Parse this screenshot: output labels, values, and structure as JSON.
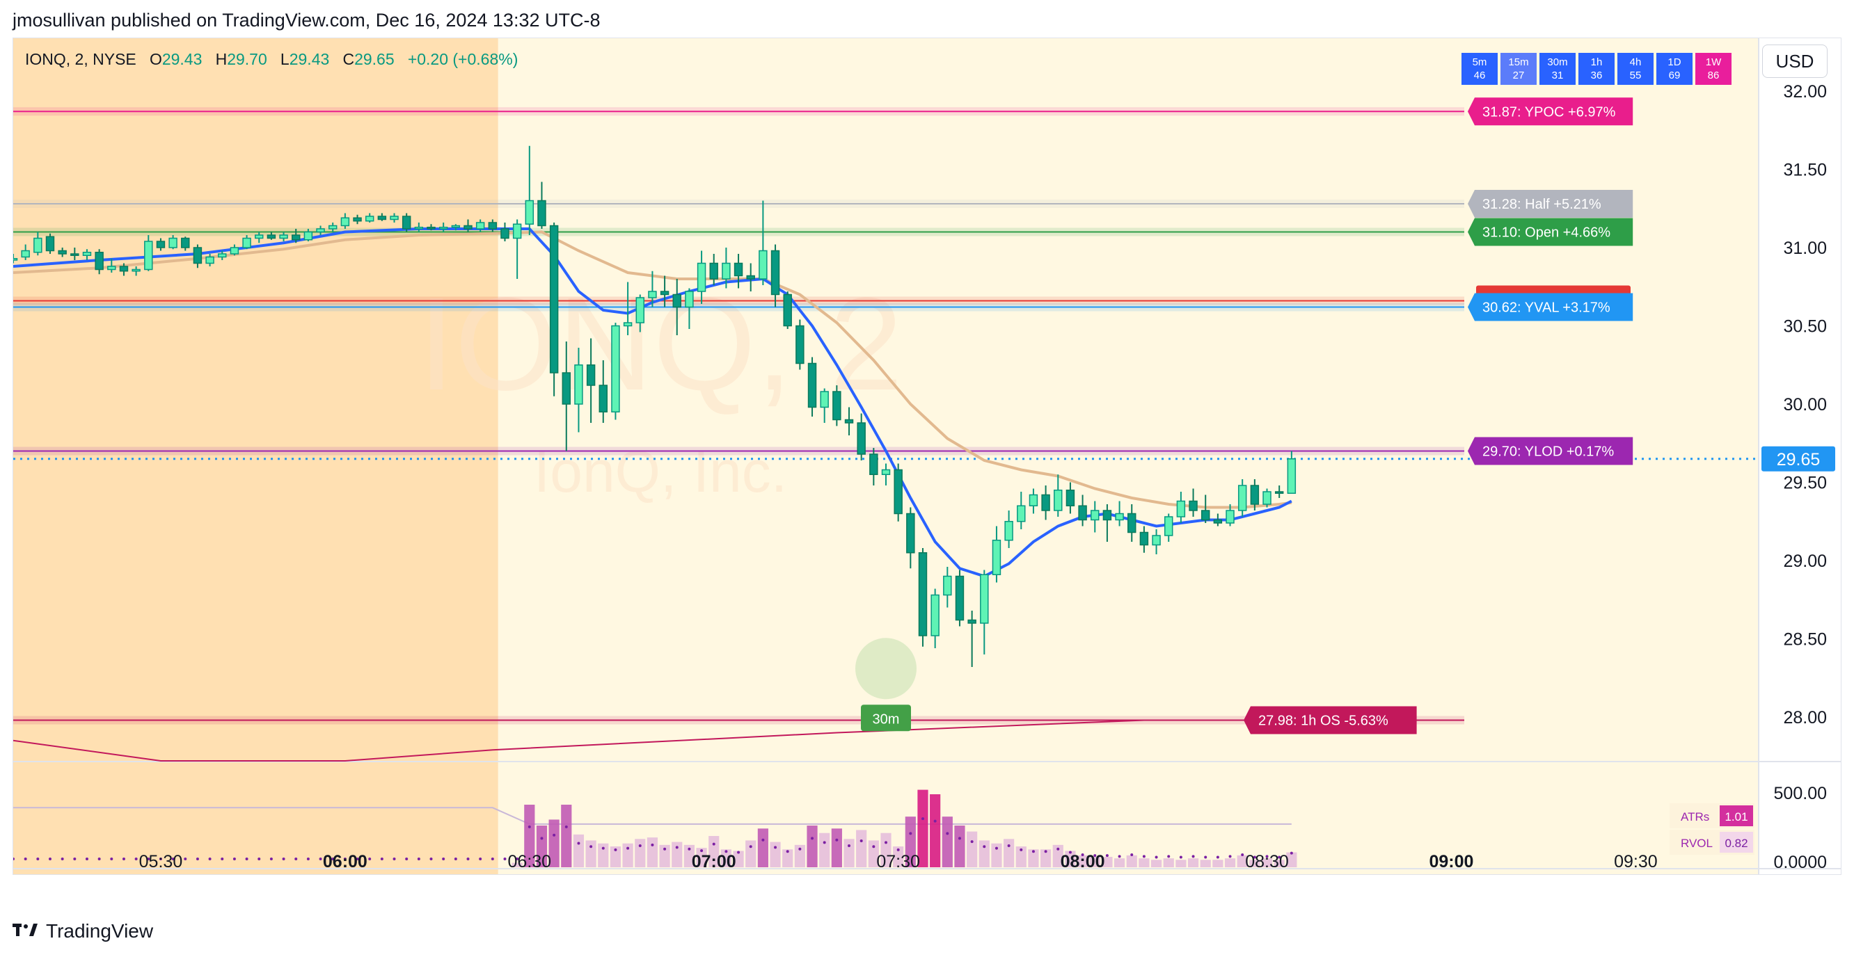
{
  "header": {
    "publisher_line": "jmosullivan published on TradingView.com, Dec 16, 2024 13:32 UTC-8"
  },
  "footer": {
    "brand": "TradingView",
    "logo_glyph": "17"
  },
  "legend": {
    "symbol": "IONQ, 2, NYSE",
    "open_label": "O",
    "open": "29.43",
    "high_label": "H",
    "high": "29.70",
    "low_label": "L",
    "low": "29.43",
    "close_label": "C",
    "close": "29.65",
    "change": "+0.20 (+0.68%)"
  },
  "watermark": {
    "symbol": "IONQ, 2",
    "company": "IonQ, Inc."
  },
  "currency_button": "USD",
  "timeframes": [
    {
      "label": "5m",
      "value": "46",
      "color": "#2962ff"
    },
    {
      "label": "15m",
      "value": "27",
      "color": "#5b7cfa"
    },
    {
      "label": "30m",
      "value": "31",
      "color": "#2962ff"
    },
    {
      "label": "1h",
      "value": "36",
      "color": "#2962ff"
    },
    {
      "label": "4h",
      "value": "55",
      "color": "#2962ff"
    },
    {
      "label": "1D",
      "value": "69",
      "color": "#2962ff"
    },
    {
      "label": "1W",
      "value": "86",
      "color": "#e91e9c"
    }
  ],
  "chart_data": {
    "type": "candlestick",
    "symbol": "IONQ",
    "interval": "2",
    "exchange": "NYSE",
    "x_ticks": [
      {
        "label": "05:30",
        "bold": false,
        "min": 330
      },
      {
        "label": "06:00",
        "bold": true,
        "min": 360
      },
      {
        "label": "06:30",
        "bold": false,
        "min": 390
      },
      {
        "label": "07:00",
        "bold": true,
        "min": 420
      },
      {
        "label": "07:30",
        "bold": false,
        "min": 450
      },
      {
        "label": "08:00",
        "bold": true,
        "min": 480
      },
      {
        "label": "08:30",
        "bold": false,
        "min": 510
      },
      {
        "label": "09:00",
        "bold": true,
        "min": 540
      },
      {
        "label": "09:30",
        "bold": false,
        "min": 570
      }
    ],
    "y_ticks": [
      "32.00",
      "31.50",
      "31.00",
      "30.50",
      "30.00",
      "29.50",
      "29.00",
      "28.50",
      "28.00"
    ],
    "ylim": [
      27.7,
      32.3
    ],
    "xlim_minutes": [
      306,
      590
    ],
    "premarket_end_minute": 384,
    "current_price": "29.65",
    "levels": [
      {
        "price": 31.87,
        "label": "31.87: YPOC +6.97%",
        "color": "#e91e8c"
      },
      {
        "price": 31.28,
        "label": "31.28: Half +5.21%",
        "color": "#b2b5be"
      },
      {
        "price": 31.1,
        "label": "31.10: Open +4.66%",
        "color": "#2e9e48"
      },
      {
        "price": 30.66,
        "label": "",
        "color": "#e53935"
      },
      {
        "price": 30.62,
        "label": "30.62: YVAL +3.17%",
        "color": "#2196f3"
      },
      {
        "price": 29.7,
        "label": "29.70: YLOD +0.17%",
        "color": "#9c27b0"
      },
      {
        "price": 27.98,
        "label": "27.98: 1h OS -5.63%",
        "color": "#c2185b"
      }
    ],
    "signal_badge": {
      "label": "30m",
      "minute": 448,
      "price": 28.31
    },
    "candles": [
      [
        306,
        30.92,
        30.96,
        30.9,
        30.93
      ],
      [
        308,
        30.94,
        31.02,
        30.92,
        30.98
      ],
      [
        310,
        30.97,
        31.1,
        30.95,
        31.06
      ],
      [
        312,
        31.07,
        31.09,
        30.96,
        30.98
      ],
      [
        314,
        30.98,
        31.0,
        30.94,
        30.96
      ],
      [
        316,
        30.96,
        31.0,
        30.92,
        30.95
      ],
      [
        318,
        30.95,
        30.99,
        30.92,
        30.97
      ],
      [
        320,
        30.97,
        30.99,
        30.83,
        30.86
      ],
      [
        322,
        30.86,
        30.93,
        30.84,
        30.88
      ],
      [
        324,
        30.88,
        30.9,
        30.82,
        30.85
      ],
      [
        326,
        30.85,
        30.88,
        30.82,
        30.86
      ],
      [
        328,
        30.86,
        31.08,
        30.85,
        31.04
      ],
      [
        330,
        31.04,
        31.06,
        30.98,
        31.0
      ],
      [
        332,
        31.0,
        31.08,
        30.99,
        31.06
      ],
      [
        334,
        31.06,
        31.07,
        30.98,
        31.0
      ],
      [
        336,
        31.0,
        31.02,
        30.87,
        30.9
      ],
      [
        338,
        30.9,
        30.96,
        30.88,
        30.94
      ],
      [
        340,
        30.94,
        30.98,
        30.92,
        30.96
      ],
      [
        342,
        30.96,
        31.02,
        30.95,
        31.0
      ],
      [
        344,
        31.0,
        31.08,
        30.99,
        31.06
      ],
      [
        346,
        31.06,
        31.1,
        31.03,
        31.08
      ],
      [
        348,
        31.08,
        31.1,
        31.05,
        31.06
      ],
      [
        350,
        31.06,
        31.1,
        31.04,
        31.08
      ],
      [
        352,
        31.08,
        31.12,
        31.03,
        31.05
      ],
      [
        354,
        31.05,
        31.12,
        31.04,
        31.1
      ],
      [
        356,
        31.1,
        31.14,
        31.08,
        31.12
      ],
      [
        358,
        31.12,
        31.16,
        31.1,
        31.14
      ],
      [
        360,
        31.14,
        31.22,
        31.12,
        31.19
      ],
      [
        362,
        31.19,
        31.21,
        31.15,
        31.17
      ],
      [
        364,
        31.17,
        31.22,
        31.16,
        31.2
      ],
      [
        366,
        31.2,
        31.22,
        31.17,
        31.18
      ],
      [
        368,
        31.18,
        31.22,
        31.16,
        31.2
      ],
      [
        370,
        31.2,
        31.22,
        31.1,
        31.12
      ],
      [
        372,
        31.12,
        31.16,
        31.1,
        31.13
      ],
      [
        374,
        31.13,
        31.15,
        31.11,
        31.12
      ],
      [
        376,
        31.12,
        31.16,
        31.1,
        31.13
      ],
      [
        378,
        31.13,
        31.15,
        31.11,
        31.14
      ],
      [
        380,
        31.14,
        31.18,
        31.1,
        31.12
      ],
      [
        382,
        31.12,
        31.18,
        31.1,
        31.16
      ],
      [
        384,
        31.16,
        31.18,
        31.1,
        31.12
      ],
      [
        386,
        31.12,
        31.16,
        31.04,
        31.06
      ],
      [
        388,
        31.06,
        31.18,
        30.8,
        31.15
      ],
      [
        390,
        31.15,
        31.65,
        31.08,
        31.3
      ],
      [
        392,
        31.3,
        31.42,
        31.12,
        31.14
      ],
      [
        394,
        31.14,
        31.16,
        30.05,
        30.2
      ],
      [
        396,
        30.2,
        30.4,
        29.7,
        30.0
      ],
      [
        398,
        30.0,
        30.36,
        29.82,
        30.25
      ],
      [
        400,
        30.25,
        30.42,
        29.88,
        30.12
      ],
      [
        402,
        30.12,
        30.28,
        29.88,
        29.95
      ],
      [
        404,
        29.95,
        30.52,
        29.9,
        30.5
      ],
      [
        406,
        30.5,
        30.78,
        30.44,
        30.52
      ],
      [
        408,
        30.52,
        30.7,
        30.46,
        30.68
      ],
      [
        410,
        30.68,
        30.85,
        30.62,
        30.72
      ],
      [
        412,
        30.72,
        30.82,
        30.62,
        30.7
      ],
      [
        414,
        30.7,
        30.8,
        30.44,
        30.62
      ],
      [
        416,
        30.62,
        30.74,
        30.48,
        30.72
      ],
      [
        418,
        30.72,
        30.98,
        30.64,
        30.9
      ],
      [
        420,
        30.9,
        30.96,
        30.76,
        30.8
      ],
      [
        422,
        30.8,
        31.0,
        30.74,
        30.9
      ],
      [
        424,
        30.9,
        30.96,
        30.74,
        30.82
      ],
      [
        426,
        30.82,
        30.9,
        30.72,
        30.8
      ],
      [
        428,
        30.8,
        31.3,
        30.76,
        30.98
      ],
      [
        430,
        30.98,
        31.02,
        30.62,
        30.7
      ],
      [
        432,
        30.7,
        30.72,
        30.48,
        30.5
      ],
      [
        434,
        30.5,
        30.54,
        30.22,
        30.26
      ],
      [
        436,
        30.26,
        30.3,
        29.92,
        29.98
      ],
      [
        438,
        29.98,
        30.1,
        29.88,
        30.08
      ],
      [
        440,
        30.08,
        30.12,
        29.86,
        29.9
      ],
      [
        442,
        29.9,
        29.98,
        29.8,
        29.88
      ],
      [
        444,
        29.88,
        29.94,
        29.64,
        29.68
      ],
      [
        446,
        29.68,
        29.72,
        29.48,
        29.55
      ],
      [
        448,
        29.55,
        29.62,
        29.48,
        29.58
      ],
      [
        450,
        29.58,
        29.62,
        29.25,
        29.3
      ],
      [
        452,
        29.3,
        29.34,
        28.95,
        29.05
      ],
      [
        454,
        29.05,
        29.08,
        28.45,
        28.52
      ],
      [
        456,
        28.52,
        28.82,
        28.44,
        28.78
      ],
      [
        458,
        28.78,
        28.96,
        28.7,
        28.9
      ],
      [
        460,
        28.9,
        28.94,
        28.58,
        28.62
      ],
      [
        462,
        28.62,
        28.68,
        28.32,
        28.6
      ],
      [
        464,
        28.6,
        28.94,
        28.4,
        28.91
      ],
      [
        466,
        28.91,
        29.22,
        28.86,
        29.13
      ],
      [
        468,
        29.13,
        29.32,
        29.08,
        29.25
      ],
      [
        470,
        29.25,
        29.44,
        29.2,
        29.35
      ],
      [
        472,
        29.35,
        29.46,
        29.3,
        29.42
      ],
      [
        474,
        29.42,
        29.48,
        29.26,
        29.32
      ],
      [
        476,
        29.32,
        29.55,
        29.28,
        29.45
      ],
      [
        478,
        29.45,
        29.5,
        29.3,
        29.35
      ],
      [
        480,
        29.35,
        29.42,
        29.22,
        29.26
      ],
      [
        482,
        29.26,
        29.38,
        29.18,
        29.32
      ],
      [
        484,
        29.32,
        29.36,
        29.12,
        29.26
      ],
      [
        486,
        29.26,
        29.38,
        29.22,
        29.3
      ],
      [
        488,
        29.3,
        29.36,
        29.12,
        29.18
      ],
      [
        490,
        29.18,
        29.22,
        29.05,
        29.1
      ],
      [
        492,
        29.1,
        29.2,
        29.04,
        29.16
      ],
      [
        494,
        29.16,
        29.3,
        29.12,
        29.28
      ],
      [
        496,
        29.28,
        29.44,
        29.24,
        29.38
      ],
      [
        498,
        29.38,
        29.46,
        29.28,
        29.32
      ],
      [
        500,
        29.32,
        29.42,
        29.24,
        29.26
      ],
      [
        502,
        29.26,
        29.3,
        29.22,
        29.24
      ],
      [
        504,
        29.24,
        29.36,
        29.22,
        29.32
      ],
      [
        506,
        29.32,
        29.52,
        29.28,
        29.48
      ],
      [
        508,
        29.48,
        29.52,
        29.32,
        29.36
      ],
      [
        510,
        29.36,
        29.46,
        29.34,
        29.44
      ],
      [
        512,
        29.44,
        29.48,
        29.4,
        29.43
      ],
      [
        514,
        29.43,
        29.7,
        29.43,
        29.65
      ]
    ],
    "ema_fast": [
      [
        306,
        30.88
      ],
      [
        320,
        30.92
      ],
      [
        336,
        30.96
      ],
      [
        350,
        31.03
      ],
      [
        360,
        31.1
      ],
      [
        372,
        31.12
      ],
      [
        384,
        31.12
      ],
      [
        390,
        31.12
      ],
      [
        394,
        30.95
      ],
      [
        398,
        30.72
      ],
      [
        402,
        30.6
      ],
      [
        406,
        30.58
      ],
      [
        410,
        30.65
      ],
      [
        416,
        30.72
      ],
      [
        422,
        30.78
      ],
      [
        428,
        30.8
      ],
      [
        432,
        30.7
      ],
      [
        436,
        30.5
      ],
      [
        440,
        30.25
      ],
      [
        444,
        29.98
      ],
      [
        448,
        29.7
      ],
      [
        452,
        29.4
      ],
      [
        456,
        29.12
      ],
      [
        460,
        28.95
      ],
      [
        464,
        28.9
      ],
      [
        468,
        28.98
      ],
      [
        472,
        29.12
      ],
      [
        476,
        29.22
      ],
      [
        480,
        29.28
      ],
      [
        484,
        29.3
      ],
      [
        488,
        29.26
      ],
      [
        492,
        29.22
      ],
      [
        496,
        29.24
      ],
      [
        500,
        29.26
      ],
      [
        504,
        29.26
      ],
      [
        508,
        29.3
      ],
      [
        512,
        29.34
      ],
      [
        514,
        29.38
      ]
    ],
    "ema_slow": [
      [
        306,
        30.84
      ],
      [
        320,
        30.87
      ],
      [
        336,
        30.93
      ],
      [
        350,
        30.99
      ],
      [
        360,
        31.05
      ],
      [
        372,
        31.08
      ],
      [
        384,
        31.09
      ],
      [
        392,
        31.1
      ],
      [
        398,
        30.98
      ],
      [
        406,
        30.84
      ],
      [
        414,
        30.8
      ],
      [
        422,
        30.8
      ],
      [
        428,
        30.8
      ],
      [
        434,
        30.7
      ],
      [
        440,
        30.52
      ],
      [
        446,
        30.28
      ],
      [
        452,
        30.0
      ],
      [
        458,
        29.78
      ],
      [
        464,
        29.64
      ],
      [
        470,
        29.58
      ],
      [
        476,
        29.54
      ],
      [
        482,
        29.46
      ],
      [
        488,
        29.4
      ],
      [
        494,
        29.36
      ],
      [
        500,
        29.34
      ],
      [
        506,
        29.34
      ],
      [
        512,
        29.36
      ],
      [
        514,
        29.37
      ]
    ],
    "overshoot_line": [
      [
        306,
        27.85
      ],
      [
        330,
        27.72
      ],
      [
        360,
        27.72
      ],
      [
        384,
        27.79
      ],
      [
        440,
        27.9
      ],
      [
        490,
        27.98
      ],
      [
        512,
        27.98
      ]
    ],
    "volume_panel": {
      "y_ticks": [
        "500.00",
        "0.0000"
      ],
      "ymax": 700,
      "stats": [
        {
          "label": "ATRs",
          "value": "1.01",
          "color": "#d32f9e"
        },
        {
          "label": "RVOL",
          "value": "0.82",
          "color": "#f3d7ea"
        }
      ],
      "avg_line": [
        [
          306,
          400
        ],
        [
          384,
          400
        ],
        [
          390,
          290
        ],
        [
          514,
          290
        ]
      ],
      "volumes": [
        [
          388,
          30
        ],
        [
          390,
          420
        ],
        [
          392,
          280
        ],
        [
          394,
          320
        ],
        [
          396,
          420
        ],
        [
          398,
          220
        ],
        [
          400,
          180
        ],
        [
          402,
          160
        ],
        [
          404,
          140
        ],
        [
          406,
          160
        ],
        [
          408,
          190
        ],
        [
          410,
          200
        ],
        [
          412,
          150
        ],
        [
          414,
          170
        ],
        [
          416,
          150
        ],
        [
          418,
          130
        ],
        [
          420,
          210
        ],
        [
          422,
          120
        ],
        [
          424,
          110
        ],
        [
          426,
          180
        ],
        [
          428,
          260
        ],
        [
          430,
          170
        ],
        [
          432,
          120
        ],
        [
          434,
          150
        ],
        [
          436,
          280
        ],
        [
          438,
          230
        ],
        [
          440,
          260
        ],
        [
          442,
          190
        ],
        [
          444,
          250
        ],
        [
          446,
          180
        ],
        [
          448,
          230
        ],
        [
          450,
          140
        ],
        [
          452,
          340
        ],
        [
          454,
          520
        ],
        [
          456,
          490
        ],
        [
          458,
          340
        ],
        [
          460,
          280
        ],
        [
          462,
          240
        ],
        [
          464,
          180
        ],
        [
          466,
          160
        ],
        [
          468,
          190
        ],
        [
          470,
          140
        ],
        [
          472,
          120
        ],
        [
          474,
          120
        ],
        [
          476,
          150
        ],
        [
          478,
          110
        ],
        [
          480,
          80
        ],
        [
          482,
          70
        ],
        [
          484,
          70
        ],
        [
          486,
          60
        ],
        [
          488,
          80
        ],
        [
          490,
          60
        ],
        [
          492,
          50
        ],
        [
          494,
          60
        ],
        [
          496,
          50
        ],
        [
          498,
          60
        ],
        [
          500,
          50
        ],
        [
          502,
          50
        ],
        [
          504,
          60
        ],
        [
          506,
          80
        ],
        [
          508,
          50
        ],
        [
          510,
          60
        ],
        [
          512,
          50
        ],
        [
          514,
          100
        ]
      ]
    }
  }
}
